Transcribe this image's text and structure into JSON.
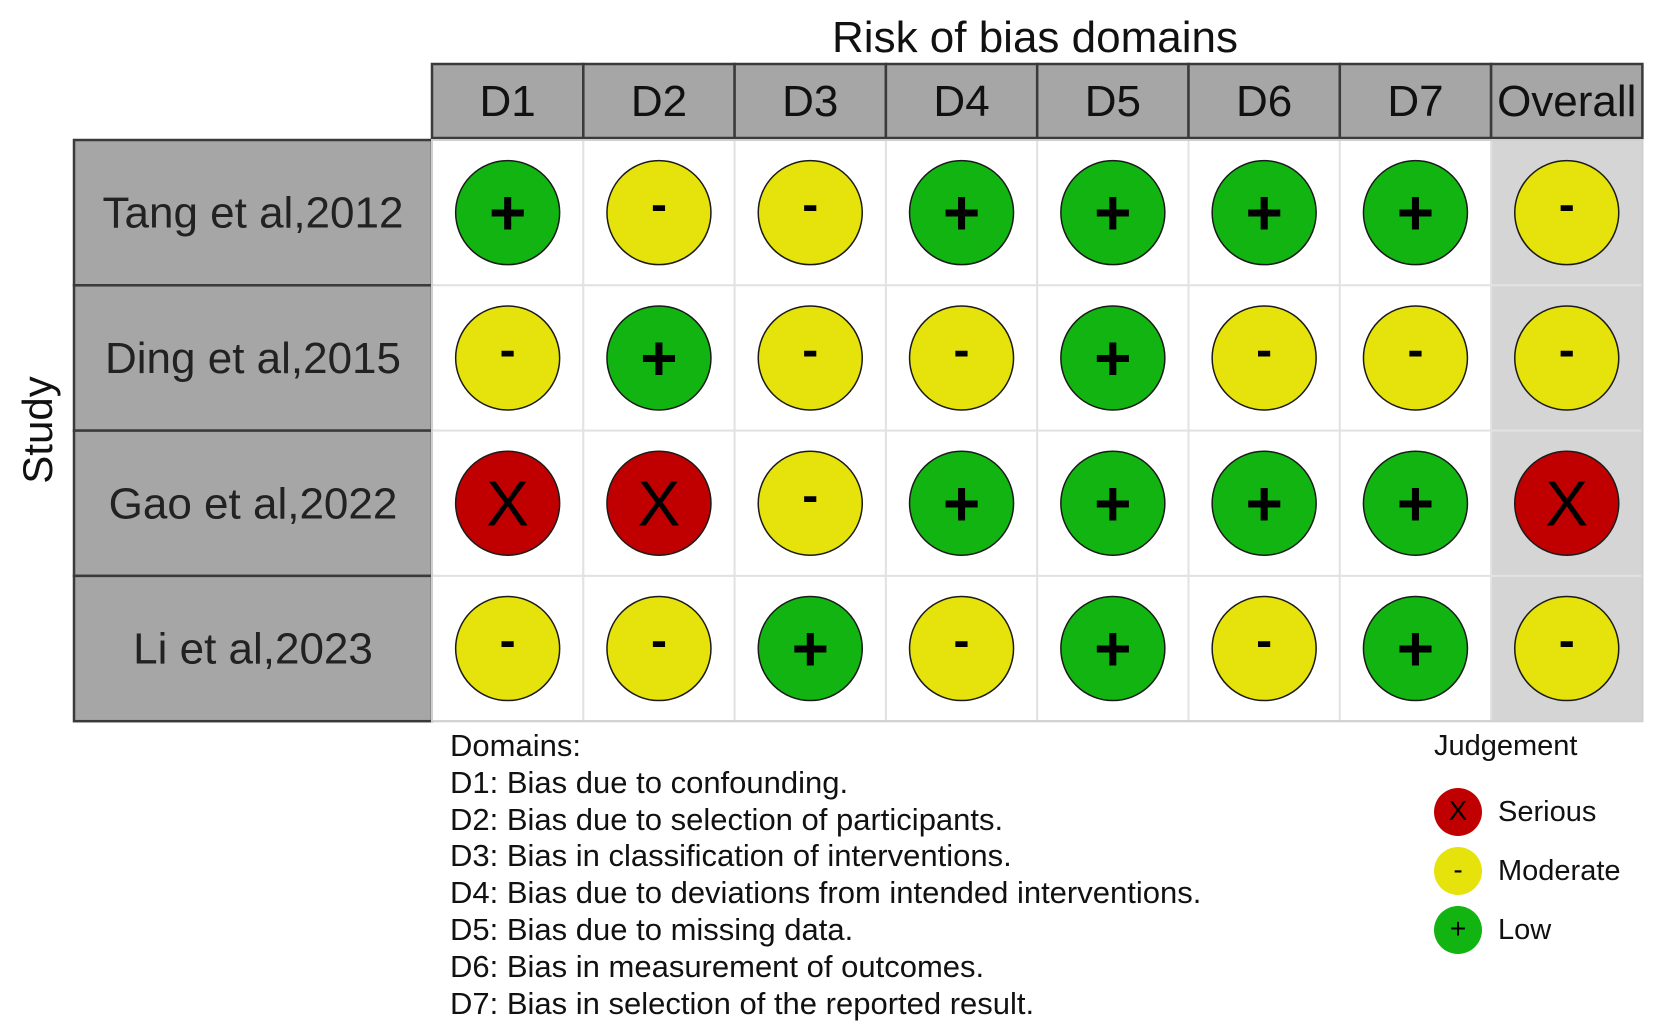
{
  "chart_data": {
    "type": "table",
    "title": "Risk of bias domains",
    "ylabel": "Study",
    "columns": [
      "D1",
      "D2",
      "D3",
      "D4",
      "D5",
      "D6",
      "D7",
      "Overall"
    ],
    "studies": [
      {
        "name": "Tang et al,2012",
        "judgements": [
          "Low",
          "Moderate",
          "Moderate",
          "Low",
          "Low",
          "Low",
          "Low",
          "Moderate"
        ]
      },
      {
        "name": "Ding et al,2015",
        "judgements": [
          "Moderate",
          "Low",
          "Moderate",
          "Moderate",
          "Low",
          "Moderate",
          "Moderate",
          "Moderate"
        ]
      },
      {
        "name": "Gao et al,2022",
        "judgements": [
          "Serious",
          "Serious",
          "Moderate",
          "Low",
          "Low",
          "Low",
          "Low",
          "Serious"
        ]
      },
      {
        "name": "Li et al,2023",
        "judgements": [
          "Moderate",
          "Moderate",
          "Low",
          "Moderate",
          "Low",
          "Moderate",
          "Low",
          "Moderate"
        ]
      }
    ],
    "symbols": {
      "Serious": "X",
      "Moderate": "-",
      "Low": "+"
    },
    "colors": {
      "Serious": "#c00000",
      "Moderate": "#e6e20b",
      "Low": "#12b412"
    }
  },
  "domains": {
    "heading": "Domains:",
    "items": [
      "D1: Bias due to confounding.",
      "D2: Bias due to selection of participants.",
      "D3: Bias in classification of interventions.",
      "D4: Bias due to deviations from intended interventions.",
      "D5: Bias due to missing data.",
      "D6: Bias in measurement of outcomes.",
      "D7: Bias in selection of the reported result."
    ]
  },
  "legend": {
    "title": "Judgement",
    "items": [
      {
        "label": "Serious",
        "symbol": "X",
        "color": "#c00000"
      },
      {
        "label": "Moderate",
        "symbol": "-",
        "color": "#e6e20b"
      },
      {
        "label": "Low",
        "symbol": "+",
        "color": "#12b412"
      }
    ]
  }
}
